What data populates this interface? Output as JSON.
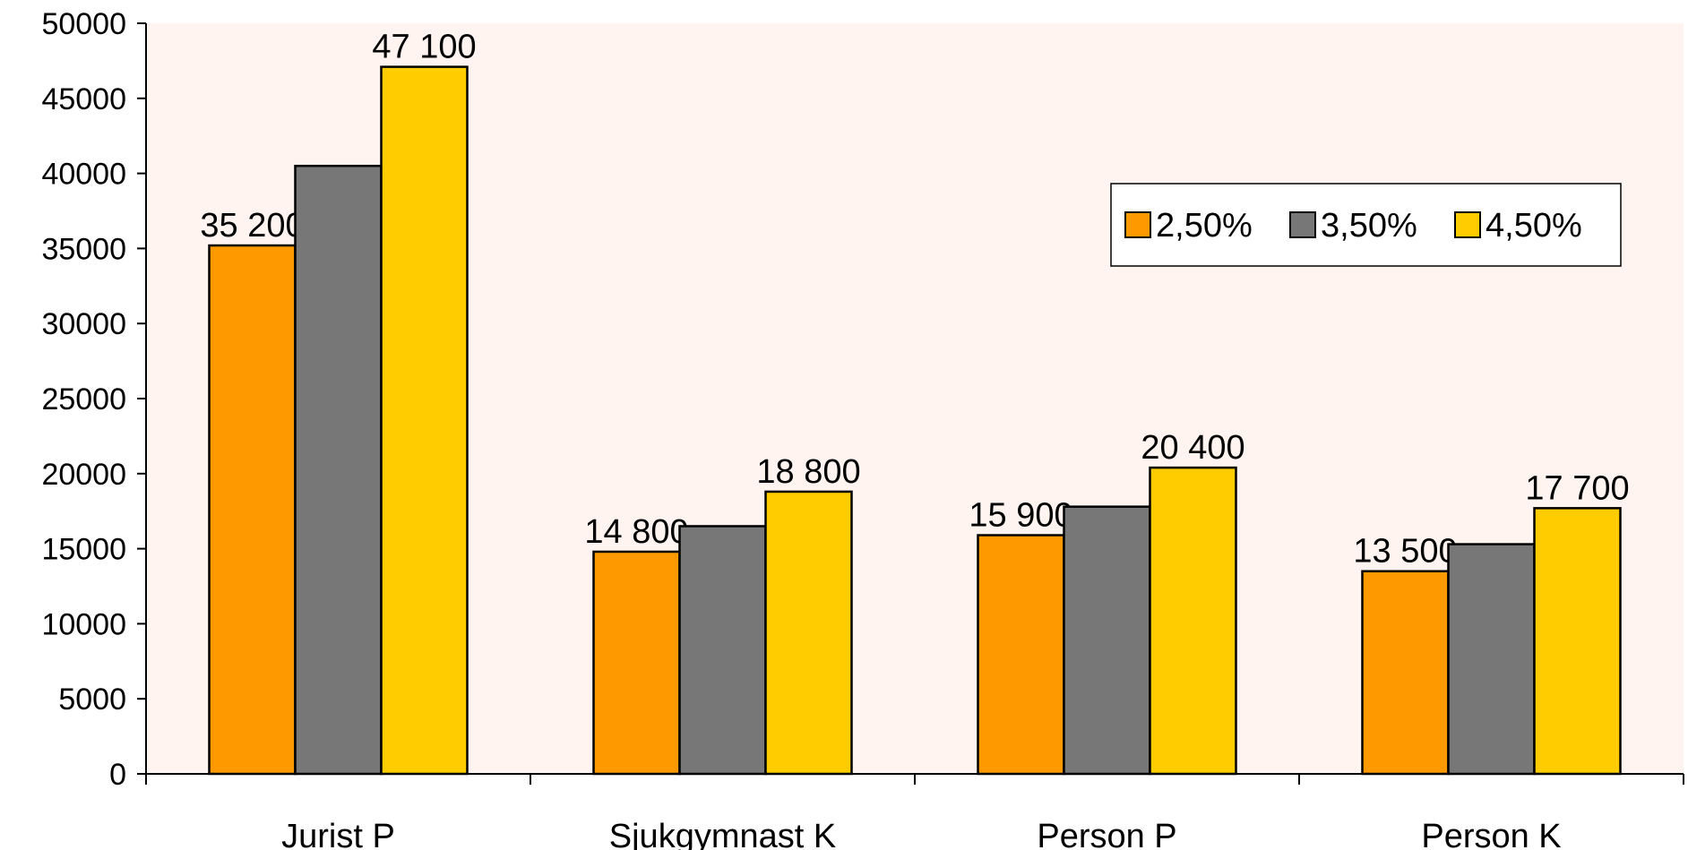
{
  "chart_data": {
    "type": "bar",
    "categories": [
      "Jurist P",
      "Sjukgymnast K",
      "Person P",
      "Person K"
    ],
    "series": [
      {
        "name": "2,50%",
        "color": "#FF9900",
        "values": [
          35200,
          14800,
          15900,
          13500
        ]
      },
      {
        "name": "3,50%",
        "color": "#777777",
        "values": [
          40500,
          16500,
          17800,
          15300
        ]
      },
      {
        "name": "4,50%",
        "color": "#FFCC00",
        "values": [
          47100,
          18800,
          20400,
          17700
        ]
      }
    ],
    "data_labels": [
      [
        "35 200",
        "14 800",
        "15 900",
        "13 500"
      ],
      [],
      [
        "47 100",
        "18 800",
        "20 400",
        "17 700"
      ]
    ],
    "yticks": [
      "0",
      "5000",
      "10000",
      "15000",
      "20000",
      "25000",
      "30000",
      "35000",
      "40000",
      "45000",
      "50000"
    ],
    "ylim": [
      0,
      50000
    ],
    "legend_position": "top-right",
    "plot_background": "#FFF4F0",
    "grid": false
  }
}
